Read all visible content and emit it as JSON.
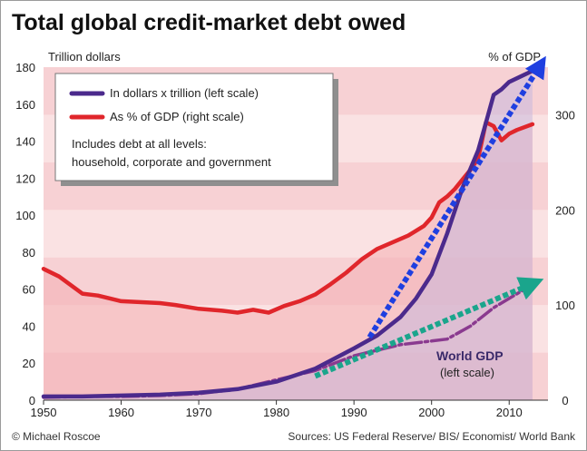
{
  "chart_data": {
    "type": "line",
    "title": "Total global credit-market debt owed",
    "ylabel_left": "Trillion dollars",
    "ylabel_right": "% of GDP",
    "x_ticks": [
      "1950",
      "1960",
      "1970",
      "1980",
      "1990",
      "2000",
      "2010"
    ],
    "y_left_ticks": [
      "180",
      "160",
      "140",
      "120",
      "100",
      "80",
      "60",
      "40",
      "20",
      "0"
    ],
    "y_right_ticks": [
      "300",
      "200",
      "100",
      "0"
    ],
    "xlim": [
      1950,
      2015
    ],
    "ylim_left": [
      0,
      180
    ],
    "ylim_right": [
      0,
      350
    ],
    "legend": {
      "placement": "top-left",
      "items": [
        {
          "label": "In dollars x trillion (left scale)",
          "color": "#4b2a8c"
        },
        {
          "label": "As % of GDP (right scale)",
          "color": "#e0262b"
        }
      ],
      "note_line1": "Includes debt at all levels:",
      "note_line2": "household, corporate and government"
    },
    "series": [
      {
        "name": "In dollars x trillion (left scale)",
        "axis": "left",
        "color": "#4b2a8c",
        "x": [
          1950,
          1955,
          1960,
          1965,
          1970,
          1975,
          1980,
          1985,
          1990,
          1993,
          1996,
          1998,
          2000,
          2002,
          2004,
          2006,
          2007,
          2008,
          2009,
          2010,
          2012,
          2013
        ],
        "values": [
          2,
          2,
          2.5,
          3,
          4,
          6,
          10,
          17,
          28,
          35,
          45,
          55,
          68,
          90,
          115,
          135,
          150,
          165,
          168,
          172,
          176,
          178
        ]
      },
      {
        "name": "As % of GDP (right scale)",
        "axis": "right",
        "color": "#e0262b",
        "x": [
          1950,
          1952,
          1955,
          1957,
          1960,
          1965,
          1967,
          1970,
          1973,
          1975,
          1977,
          1979,
          1981,
          1983,
          1985,
          1987,
          1989,
          1991,
          1993,
          1995,
          1997,
          1999,
          2000,
          2001,
          2002,
          2003,
          2004,
          2005,
          2006,
          2007,
          2008,
          2009,
          2010,
          2011,
          2013
        ],
        "values": [
          138,
          130,
          112,
          110,
          104,
          102,
          100,
          96,
          94,
          92,
          95,
          92,
          99,
          104,
          111,
          122,
          134,
          148,
          159,
          166,
          173,
          183,
          192,
          208,
          214,
          222,
          232,
          242,
          254,
          292,
          288,
          273,
          280,
          284,
          290
        ]
      },
      {
        "name": "World GDP",
        "sublabel": "(left scale)",
        "axis": "left",
        "color": "#8a3a8f",
        "dashed": true,
        "x": [
          1950,
          1955,
          1960,
          1965,
          1970,
          1975,
          1980,
          1985,
          1990,
          1993,
          1996,
          2000,
          2002,
          2005,
          2008,
          2010,
          2012,
          2013
        ],
        "values": [
          1.5,
          2,
          2,
          2.5,
          3.5,
          6,
          11,
          16,
          24,
          27,
          30,
          32,
          33,
          40,
          50,
          55,
          60,
          62
        ]
      }
    ],
    "annotations": {
      "world_gdp_label": "World GDP",
      "world_gdp_sublabel": "(left scale)",
      "credit": "© Michael Roscoe",
      "sources": "Sources: US Federal Reserve/ BIS/ Economist/ World Bank"
    },
    "arrows": [
      {
        "name": "debt-trend-arrow",
        "color": "#1f3fe0",
        "from_x": 1992,
        "from_y": 34,
        "to_x": 2014,
        "to_y": 181
      },
      {
        "name": "gdp-trend-arrow",
        "color": "#1aa58c",
        "from_x": 1985,
        "from_y": 13,
        "to_x": 2013,
        "to_y": 63
      }
    ],
    "grid": false
  }
}
